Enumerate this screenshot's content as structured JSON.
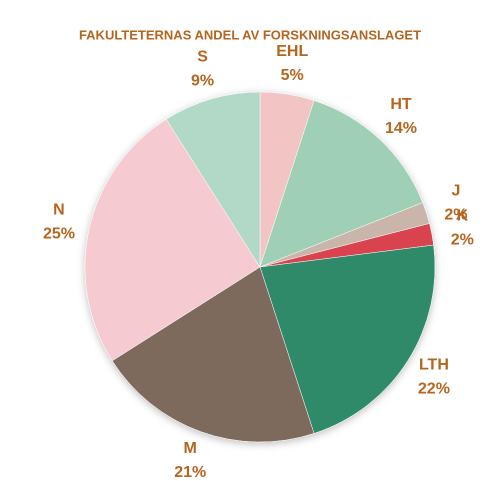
{
  "chart_data": {
    "type": "pie",
    "title": "FAKULTETERNAS ANDEL AV FORSKNINGSANSLAGET",
    "categories": [
      "EHL",
      "HT",
      "J",
      "K",
      "LTH",
      "M",
      "N",
      "S"
    ],
    "values": [
      5,
      14,
      2,
      2,
      22,
      21,
      25,
      9
    ],
    "value_labels": [
      "5%",
      "14%",
      "2%",
      "2%",
      "22%",
      "21%",
      "25%",
      "9%"
    ],
    "colors": [
      "#f2c4c4",
      "#9fcfb5",
      "#c9b5a9",
      "#d9434f",
      "#2e8a67",
      "#7d6b5c",
      "#f5cad1",
      "#b2d8c8"
    ]
  }
}
